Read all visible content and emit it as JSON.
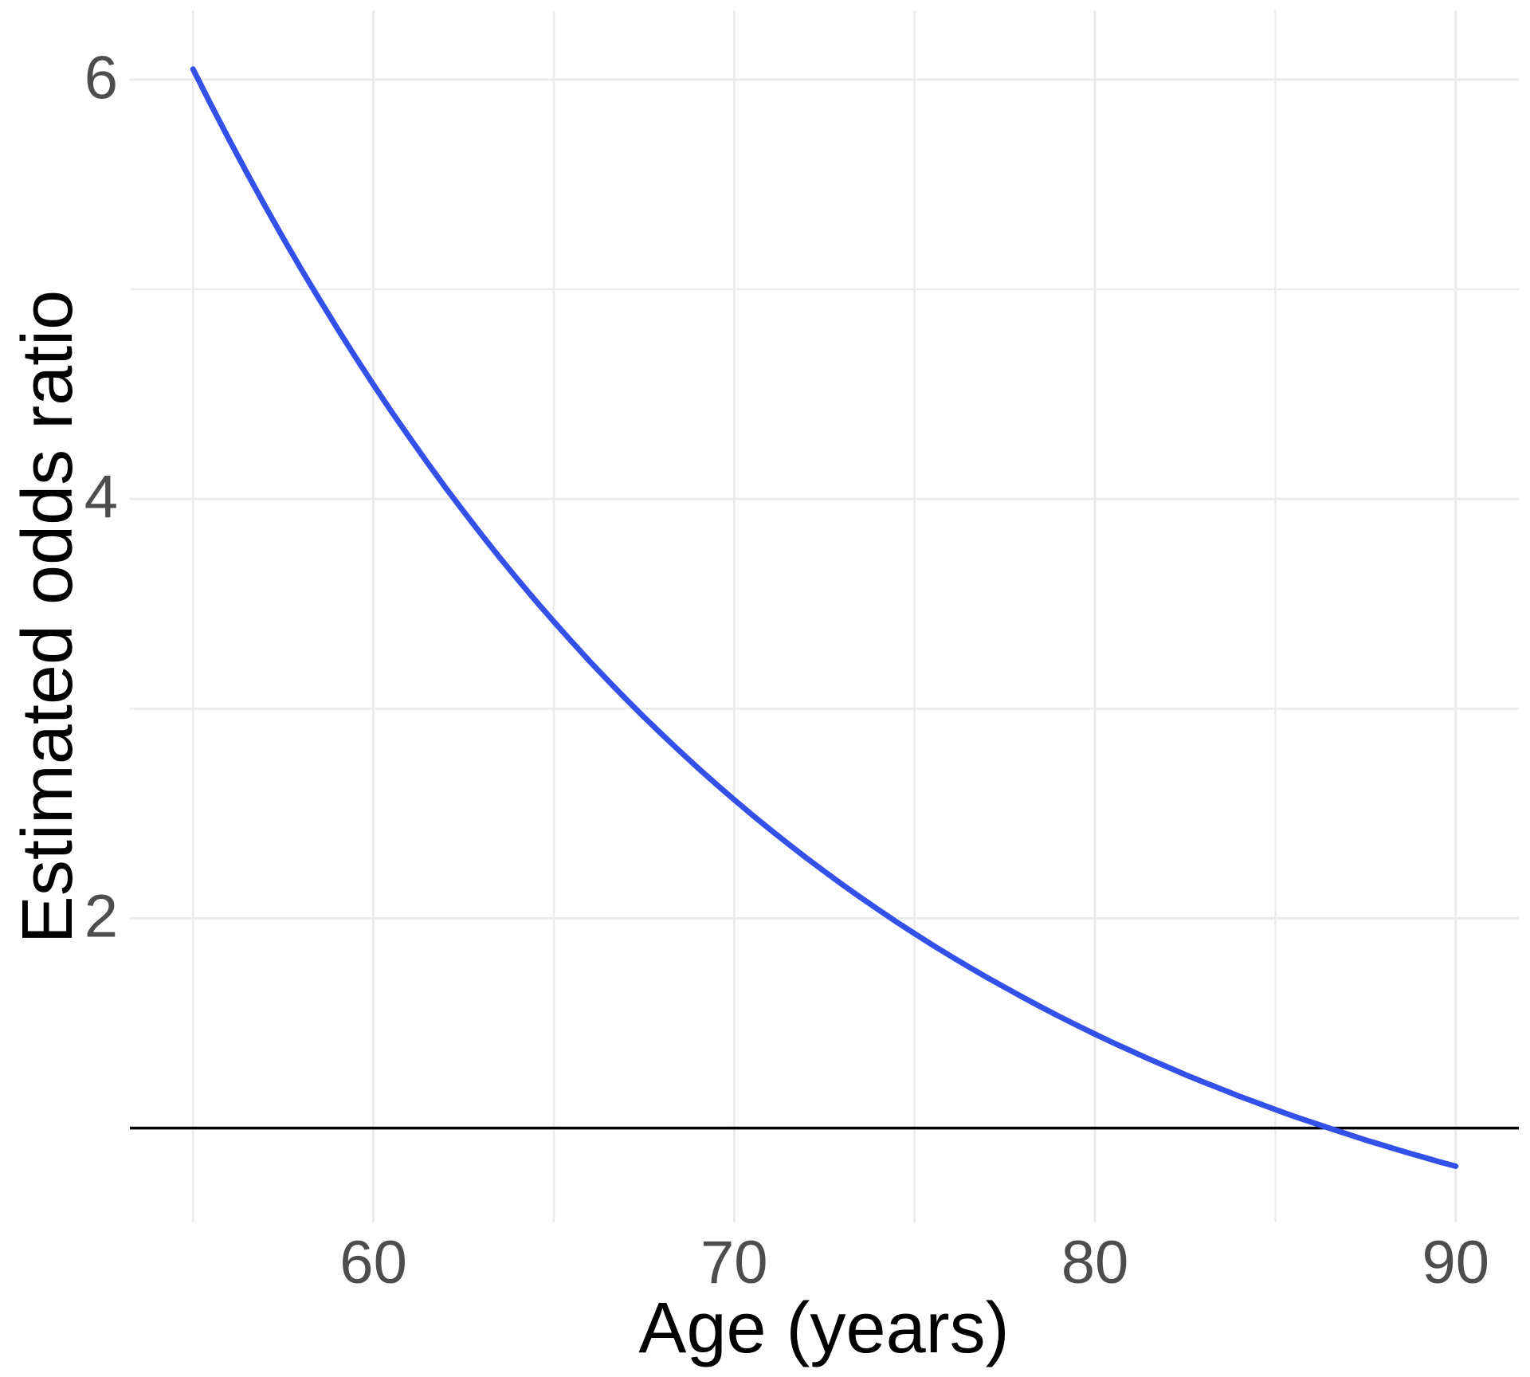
{
  "figure": {
    "background": "#ffffff"
  },
  "chart_data": {
    "type": "line",
    "title": "",
    "xlabel": "Age (years)",
    "ylabel": "Estimated odds ratio",
    "x_range": [
      53.25,
      91.75
    ],
    "y_range": [
      0.55,
      6.33
    ],
    "grid": {
      "on": true,
      "color": "#ebebeb",
      "major_width": 3,
      "minor_width": 2.5
    },
    "legend_position": "none",
    "x_ticks": {
      "major": [
        60,
        70,
        80,
        90
      ],
      "labels": [
        "60",
        "70",
        "80",
        "90"
      ],
      "minor": [
        55,
        65,
        75,
        85
      ]
    },
    "y_ticks": {
      "major": [
        2,
        4,
        6
      ],
      "labels": [
        "2",
        "4",
        "6"
      ],
      "minor": [
        1,
        3,
        5
      ]
    },
    "tick_label_color": "#4d4d4d",
    "axis_title_color": "#000000",
    "reference_line": {
      "y": 1,
      "color": "#000000",
      "width": 3.5
    },
    "series": [
      {
        "name": "estimated odds ratio curve",
        "color": "#3350e8",
        "width": 7,
        "x": [
          55,
          55.5,
          56,
          56.5,
          57,
          57.5,
          58,
          58.5,
          59,
          59.5,
          60,
          60.5,
          61,
          61.5,
          62,
          62.5,
          63,
          63.5,
          64,
          64.5,
          65,
          65.5,
          66,
          66.5,
          67,
          67.5,
          68,
          68.5,
          69,
          69.5,
          70,
          70.5,
          71,
          71.5,
          72,
          72.5,
          73,
          73.5,
          74,
          74.5,
          75,
          75.5,
          76,
          76.5,
          77,
          77.5,
          78,
          78.5,
          79,
          79.5,
          80,
          80.5,
          81,
          81.5,
          82,
          82.5,
          83,
          83.5,
          84,
          84.5,
          85,
          85.5,
          86,
          86.5,
          87,
          87.5,
          88,
          88.5,
          89,
          89.5,
          90
        ],
        "y": [
          6.05,
          5.879,
          5.714,
          5.553,
          5.396,
          5.244,
          5.096,
          4.953,
          4.813,
          4.677,
          4.545,
          4.417,
          4.293,
          4.172,
          4.054,
          3.94,
          3.829,
          3.721,
          3.616,
          3.514,
          3.415,
          3.319,
          3.225,
          3.134,
          3.046,
          2.96,
          2.877,
          2.796,
          2.717,
          2.64,
          2.566,
          2.493,
          2.423,
          2.355,
          2.288,
          2.224,
          2.161,
          2.1,
          2.041,
          1.983,
          1.927,
          1.873,
          1.82,
          1.769,
          1.719,
          1.671,
          1.624,
          1.578,
          1.533,
          1.49,
          1.448,
          1.407,
          1.368,
          1.329,
          1.292,
          1.255,
          1.22,
          1.186,
          1.152,
          1.12,
          1.088,
          1.057,
          1.028,
          0.999,
          0.971,
          0.943,
          0.917,
          0.891,
          0.866,
          0.841,
          0.818
        ]
      }
    ]
  }
}
